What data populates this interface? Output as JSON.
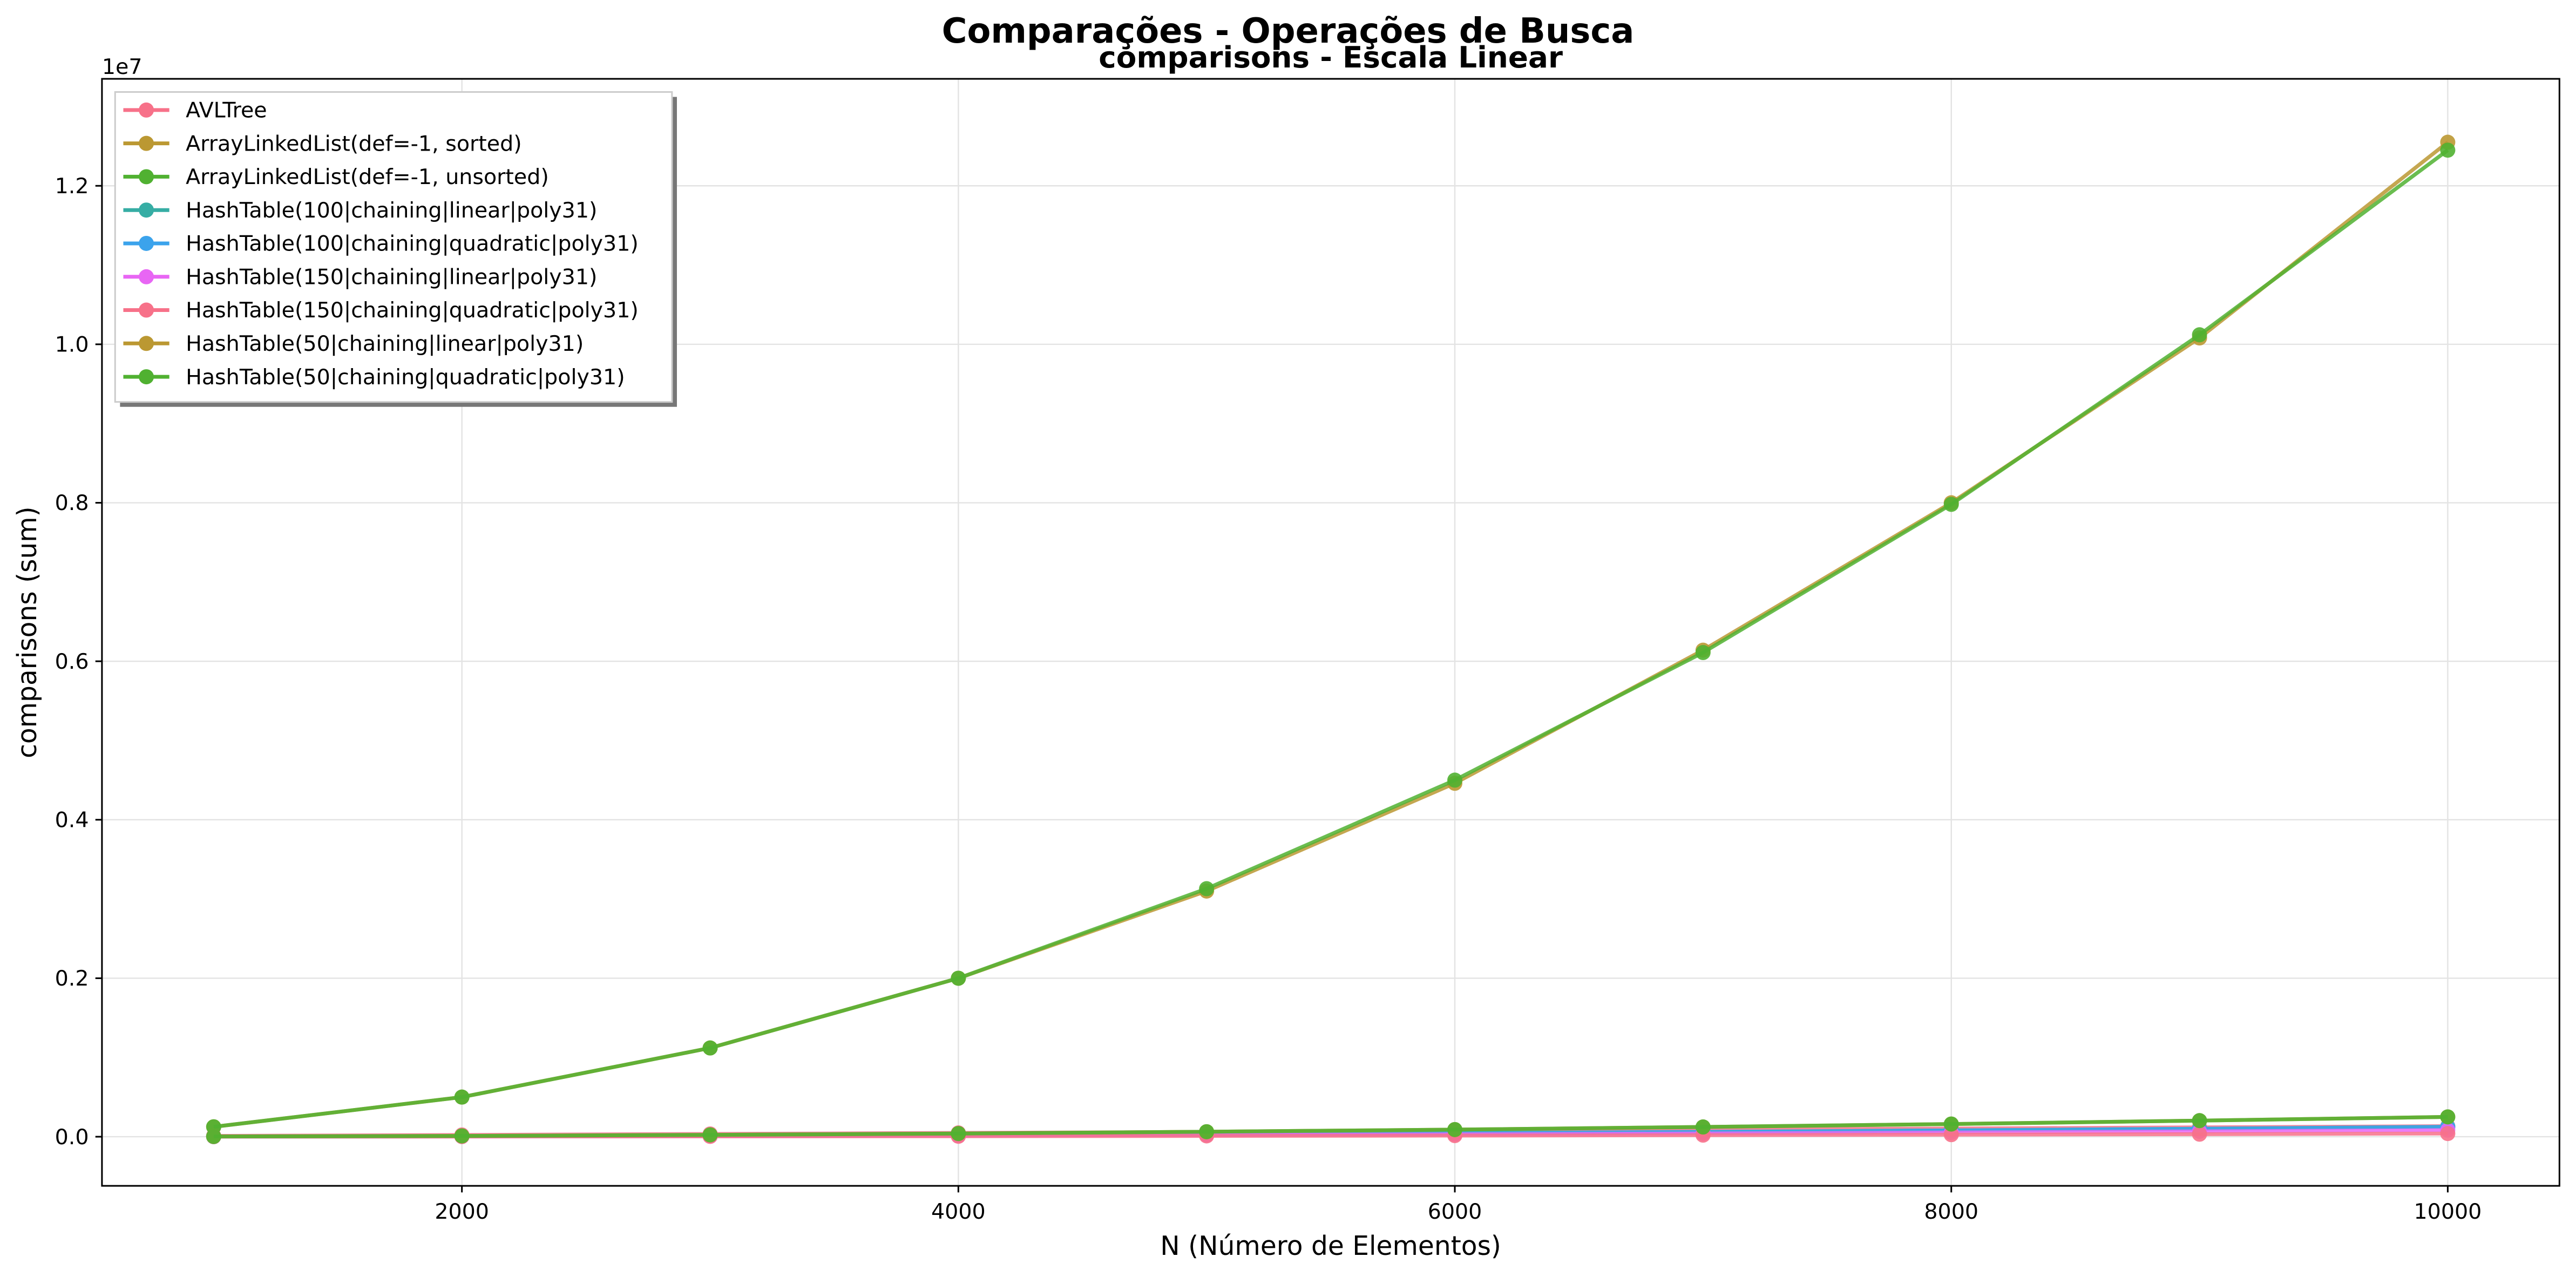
{
  "chart_data": {
    "type": "line",
    "title": "Comparações - Operações de Busca",
    "subtitle": "comparisons - Escala Linear",
    "x_label": "N (Número de Elementos)",
    "y_label": "comparisons (sum)",
    "y_offset_label": "1e7",
    "x": [
      1000,
      2000,
      3000,
      4000,
      5000,
      6000,
      7000,
      8000,
      9000,
      10000
    ],
    "xlim": [
      550,
      10450
    ],
    "xticks": [
      2000,
      4000,
      6000,
      8000,
      10000
    ],
    "ylim": [
      -0.062,
      1.335
    ],
    "yticks": [
      {
        "value": 0,
        "label": "0.0"
      },
      0.2,
      0.4,
      0.6,
      0.8,
      {
        "value": 1,
        "label": "1.0"
      },
      1.2
    ],
    "grid": true,
    "legend_position": "upper-left",
    "series": [
      {
        "name": "AVLTree",
        "color": "#f77189",
        "values": [
          0.001,
          0.0022,
          0.0035,
          0.0048,
          0.0061,
          0.0075,
          0.0089,
          0.0104,
          0.0118,
          0.0133
        ]
      },
      {
        "name": "ArrayLinkedList(def=-1, sorted)",
        "color": "#bb9832",
        "values": [
          0.0125,
          0.05,
          0.112,
          0.2,
          0.31,
          0.446,
          0.614,
          0.8,
          1.008,
          1.255
        ]
      },
      {
        "name": "ArrayLinkedList(def=-1, unsorted)",
        "color": "#50b131",
        "values": [
          0.0125,
          0.05,
          0.112,
          0.2,
          0.313,
          0.45,
          0.611,
          0.798,
          1.012,
          1.245
        ]
      },
      {
        "name": "HashTable(100|chaining|linear|poly31)",
        "color": "#36ada4",
        "values": [
          0.0001,
          0.0005,
          0.0011,
          0.002,
          0.0031,
          0.0045,
          0.0061,
          0.008,
          0.0101,
          0.0125
        ]
      },
      {
        "name": "HashTable(100|chaining|quadratic|poly31)",
        "color": "#3ba3ec",
        "values": [
          0.0001,
          0.0005,
          0.0011,
          0.002,
          0.0031,
          0.0045,
          0.0061,
          0.008,
          0.0101,
          0.0125
        ]
      },
      {
        "name": "HashTable(150|chaining|linear|poly31)",
        "color": "#e866f4",
        "values": [
          0.0001,
          0.0003,
          0.0008,
          0.0013,
          0.0021,
          0.003,
          0.0041,
          0.0053,
          0.0068,
          0.0083
        ]
      },
      {
        "name": "HashTable(150|chaining|quadratic|poly31)",
        "color": "#f77189",
        "values": [
          0.0001,
          0.0002,
          0.0004,
          0.0006,
          0.001,
          0.0014,
          0.002,
          0.0026,
          0.0032,
          0.004
        ]
      },
      {
        "name": "HashTable(50|chaining|linear|poly31)",
        "color": "#bb9832",
        "values": [
          0.0003,
          0.001,
          0.0023,
          0.004,
          0.0063,
          0.009,
          0.0123,
          0.016,
          0.0203,
          0.025
        ]
      },
      {
        "name": "HashTable(50|chaining|quadratic|poly31)",
        "color": "#50b131",
        "values": [
          0.0003,
          0.001,
          0.0023,
          0.004,
          0.0063,
          0.009,
          0.0123,
          0.016,
          0.0203,
          0.025
        ]
      }
    ]
  }
}
